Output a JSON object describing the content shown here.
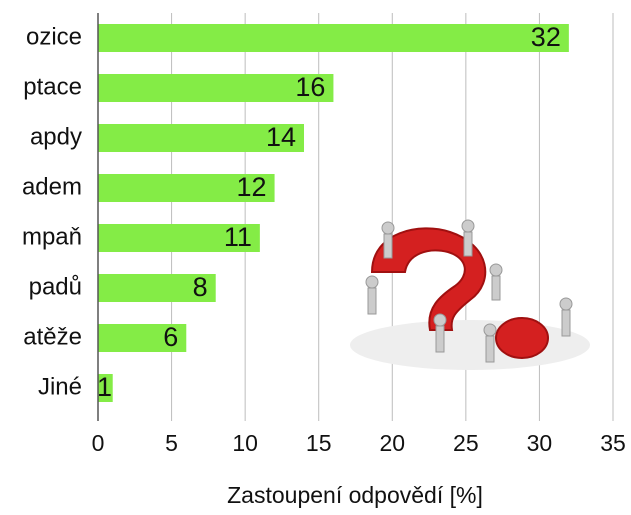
{
  "chart_data": {
    "type": "bar",
    "orientation": "horizontal",
    "categories": [
      "ozice",
      "ptace",
      "apdy",
      "adem",
      "mpaň",
      "padů",
      "atěže",
      "Jiné"
    ],
    "values": [
      32,
      16,
      14,
      12,
      11,
      8,
      6,
      1
    ],
    "color": "#84ec46",
    "xlabel": "Zastoupení odpovědí [%]",
    "xlim": [
      0,
      35
    ],
    "xticks": [
      0,
      5,
      10,
      15,
      20,
      25,
      30,
      35
    ],
    "grid": true
  }
}
